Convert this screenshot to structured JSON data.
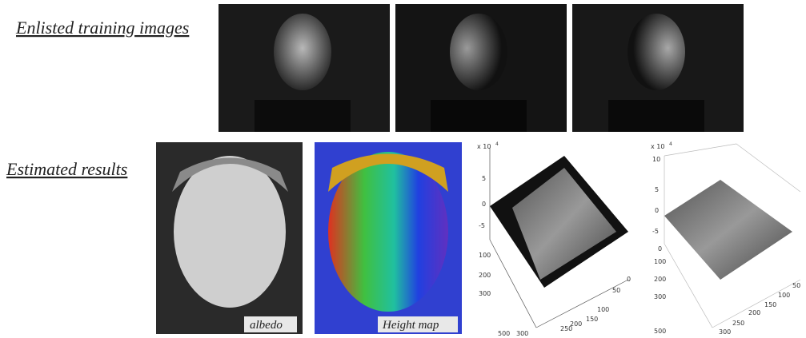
{
  "rows": [
    {
      "label": "Enlisted training images"
    },
    {
      "label": "Estimated results"
    }
  ],
  "panels": {
    "albedo": "albedo",
    "height_map": "Height map"
  },
  "plots": [
    {
      "scale_label": "x 10",
      "scale_exp": 4,
      "z_ticks": [
        5,
        0,
        -5
      ],
      "y_ticks": [
        100,
        200,
        300,
        500
      ],
      "x_ticks": [
        0,
        50,
        100,
        150,
        200,
        250,
        300
      ]
    },
    {
      "scale_label": "x 10",
      "scale_exp": 4,
      "z_ticks": [
        10,
        5,
        0,
        -5
      ],
      "y_ticks": [
        0,
        100,
        200,
        300,
        500
      ],
      "x_ticks": [
        50,
        100,
        150,
        200,
        250,
        300
      ]
    }
  ]
}
